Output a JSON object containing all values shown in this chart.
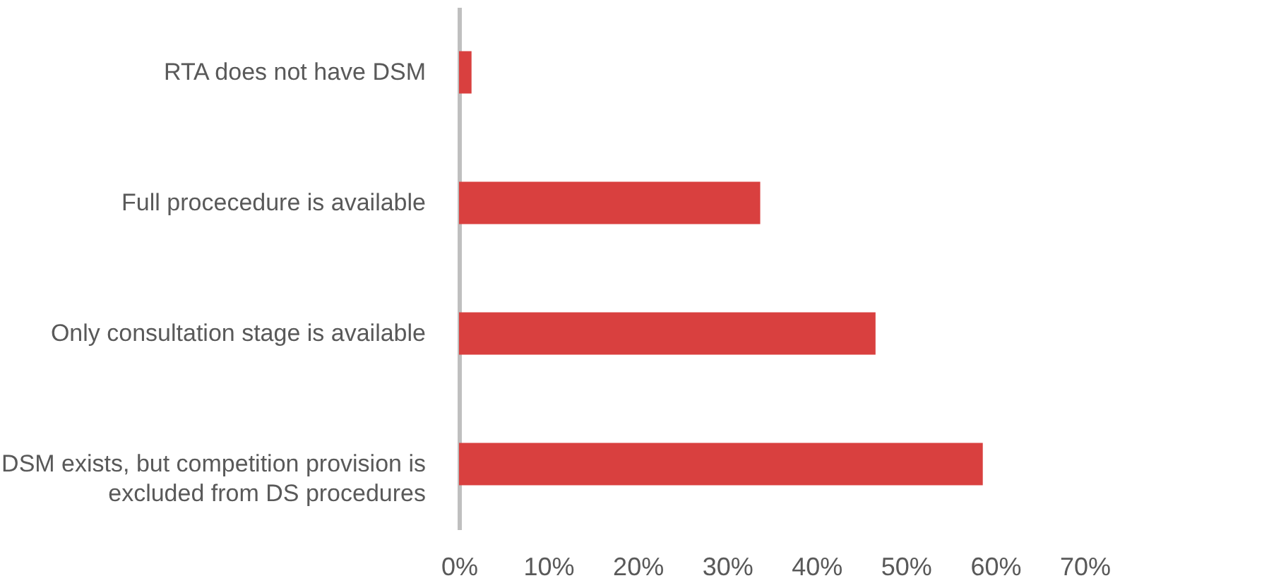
{
  "chart_data": {
    "type": "bar",
    "orientation": "horizontal",
    "categories": [
      "RTA does not have DSM",
      "Full procecedure is available",
      "Only consultation stage is available",
      "DSM exists, but competition provision is\nexcluded from DS procedures"
    ],
    "values": [
      1.4,
      33.7,
      46.6,
      58.6
    ],
    "color": "#d9403f",
    "xlim": [
      0,
      70
    ],
    "xticks": [
      {
        "value": 0,
        "label": "0%"
      },
      {
        "value": 10,
        "label": "10%"
      },
      {
        "value": 20,
        "label": "20%"
      },
      {
        "value": 30,
        "label": "30%"
      },
      {
        "value": 40,
        "label": "40%"
      },
      {
        "value": 50,
        "label": "50%"
      },
      {
        "value": 60,
        "label": "60%"
      },
      {
        "value": 70,
        "label": "70%"
      }
    ],
    "grid": false
  }
}
